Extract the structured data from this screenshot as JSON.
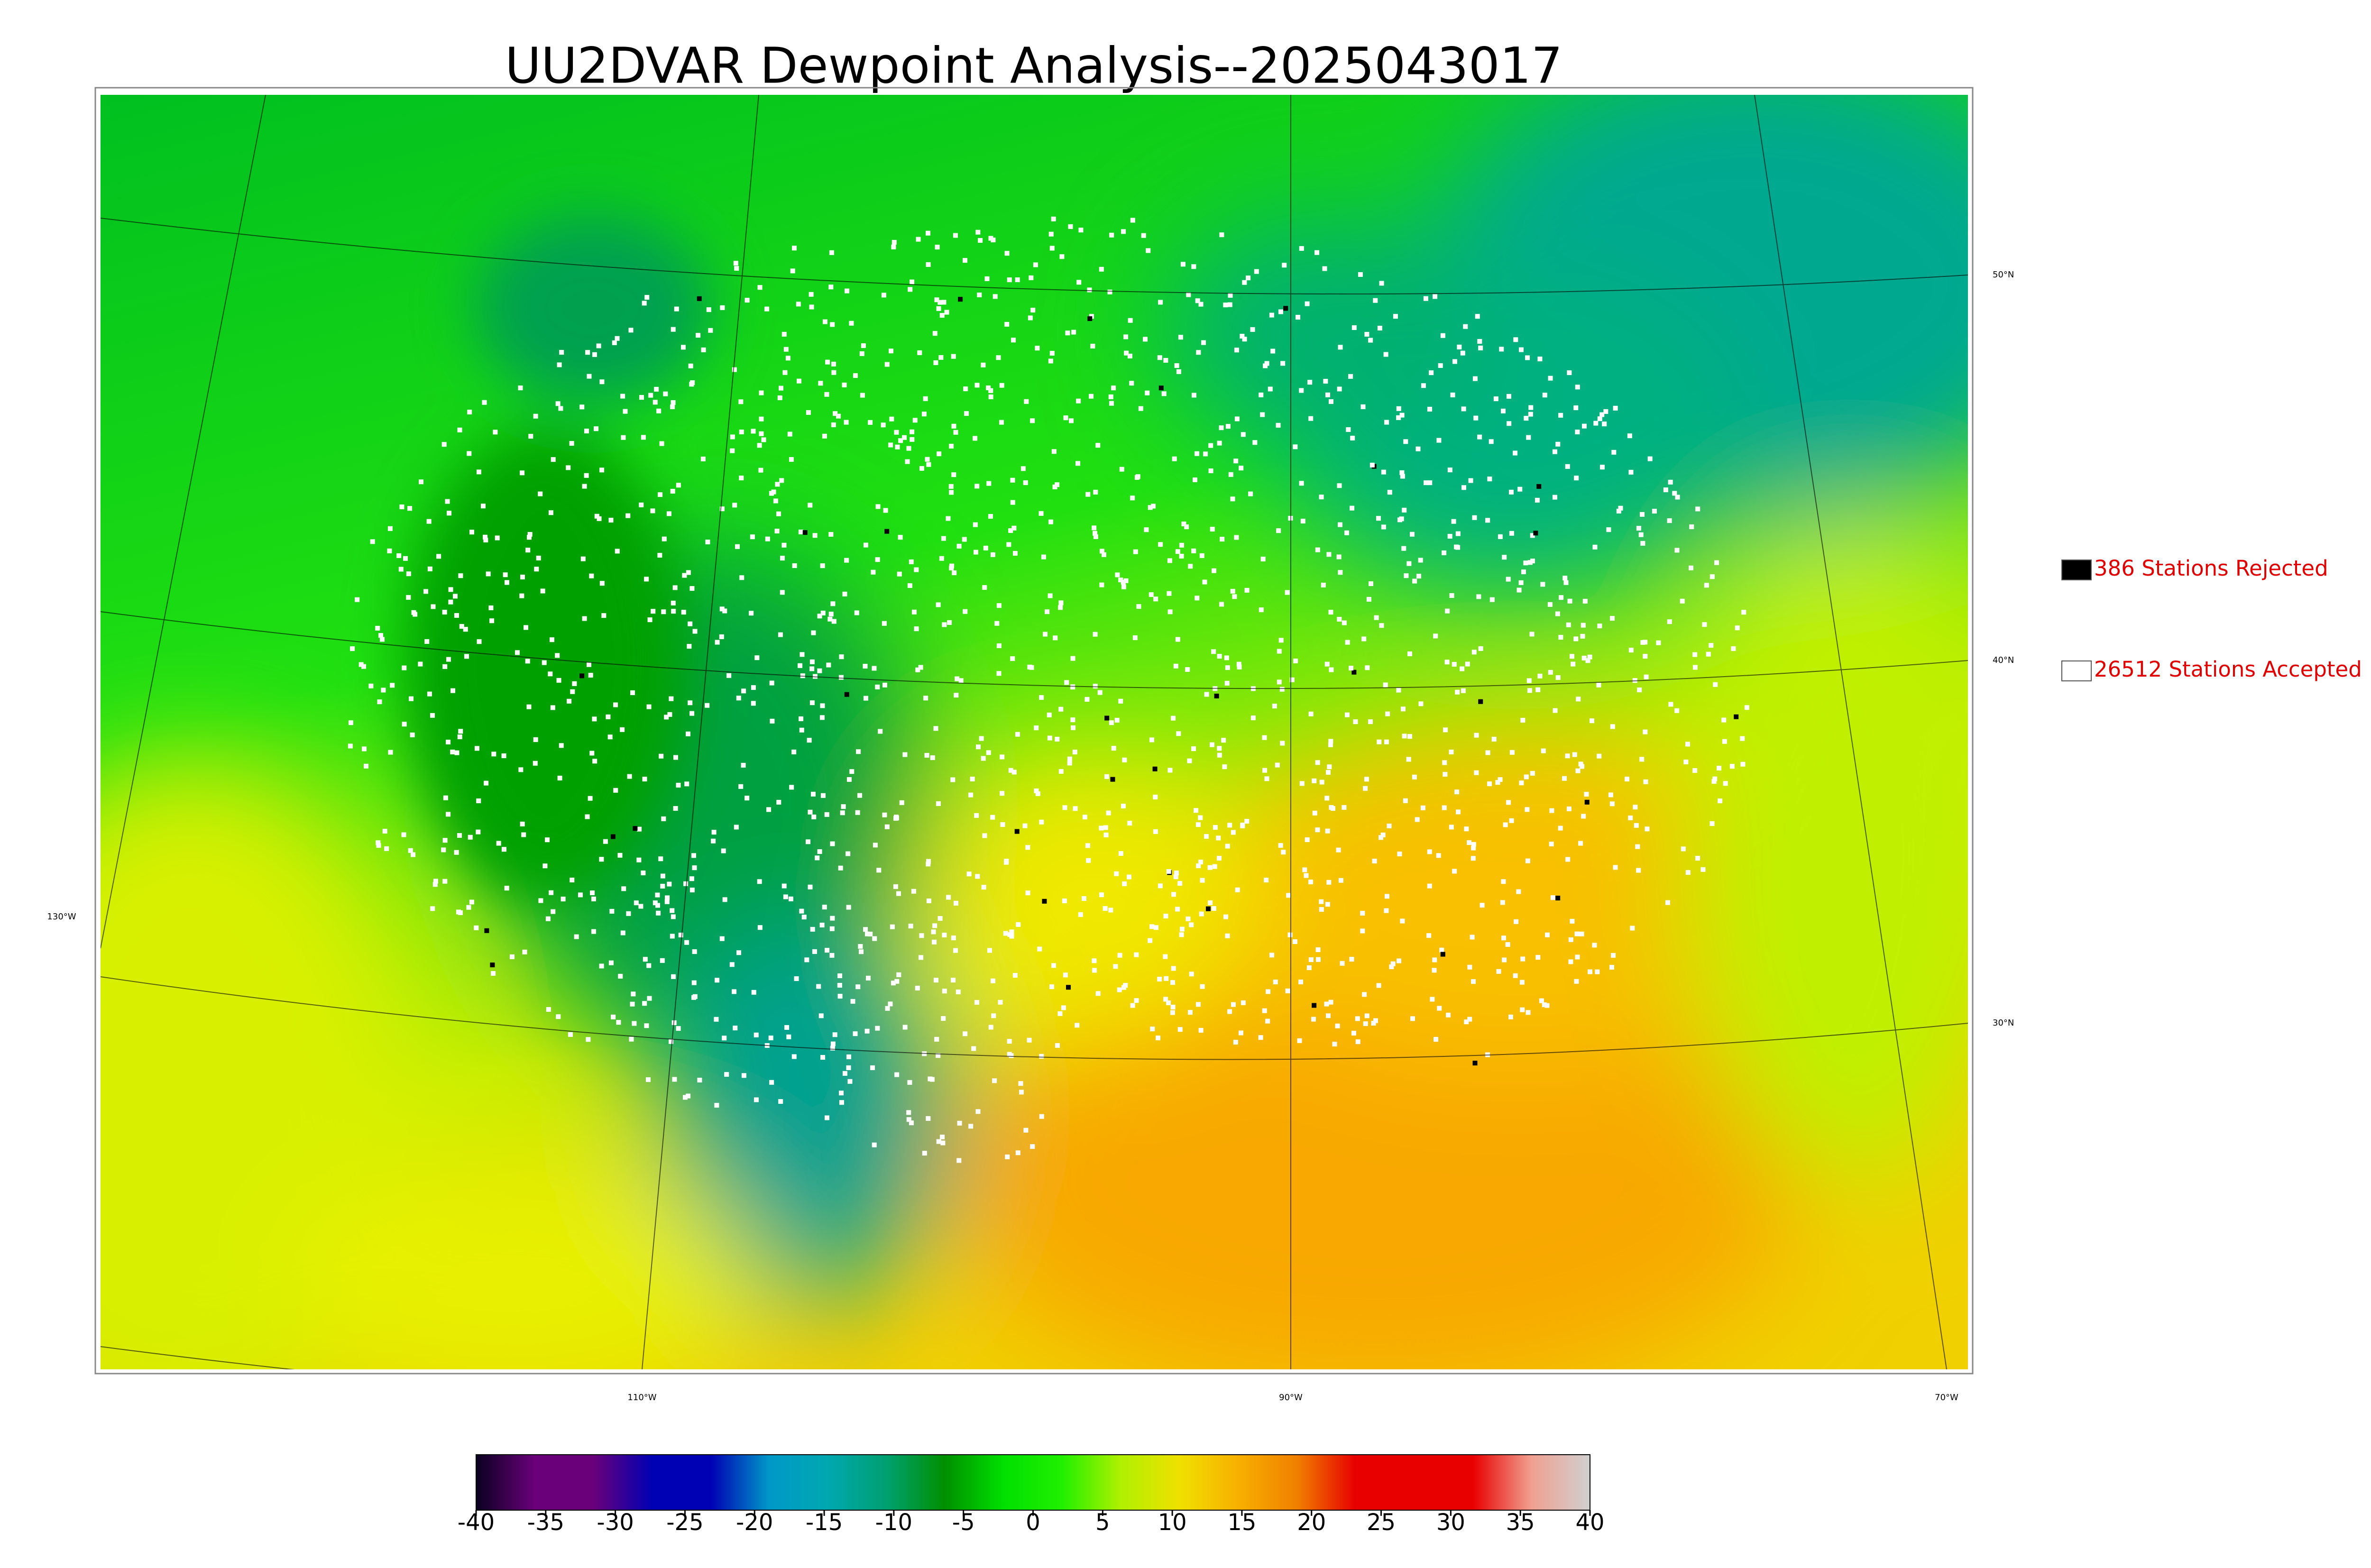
{
  "title": "UU2DVAR Dewpoint Analysis--2025043017",
  "graticule": {
    "lat_labels": [
      "50°N",
      "40°N",
      "30°N"
    ],
    "lon_labels": [
      "130°W",
      "110°W",
      "90°W",
      "70°W"
    ]
  },
  "legend": [
    {
      "label": "386 Stations Rejected",
      "color": "#000000"
    },
    {
      "label": "26512 Stations Accepted",
      "color": "#ffffff"
    }
  ],
  "colorbar": {
    "lim": [
      -40,
      40
    ],
    "ticks": [
      -40,
      -35,
      -30,
      -25,
      -20,
      -15,
      -10,
      -5,
      0,
      5,
      10,
      15,
      20,
      25,
      30,
      35,
      40
    ],
    "colors": [
      "#0a0020",
      "#6a007a",
      "#6a007a",
      "#0000b4",
      "#0000b4",
      "#0098c8",
      "#00a8b0",
      "#00a070",
      "#009000",
      "#00e000",
      "#20f000",
      "#b0f000",
      "#f0e000",
      "#f8b000",
      "#f08000",
      "#e80000",
      "#e80000",
      "#e80000",
      "#f0a090",
      "#d0d0d0"
    ]
  }
}
